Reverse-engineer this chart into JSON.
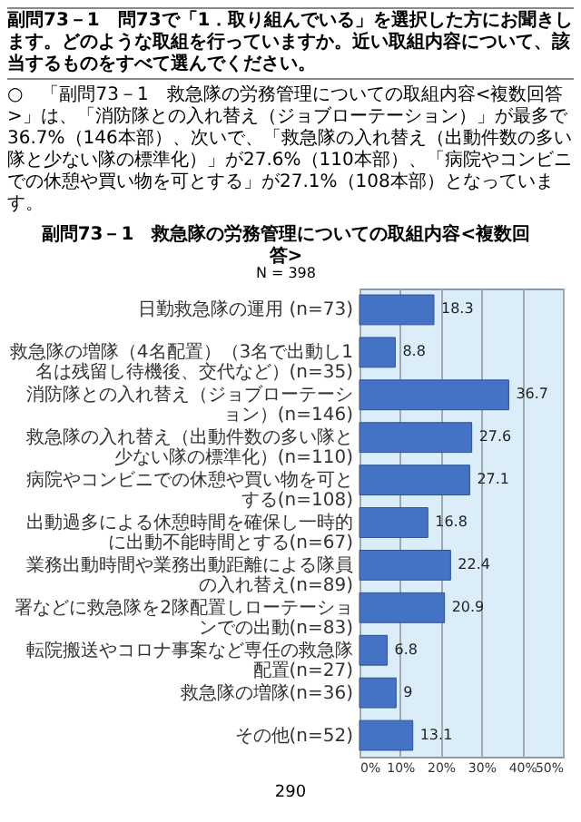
{
  "chart_data": {
    "type": "bar",
    "orientation": "horizontal",
    "title": "副問73－1　救急隊の労務管理についての取組内容<複数回答>",
    "subtitle": "N = 398",
    "annotations": [
      "副問73－1　問73で「1．取り組んでいる」を選択した方にお聞きします。どのような取組を行っていますか。近い取組内容について、該当するものをすべて選んでください。",
      "○　「副問73－1　救急隊の労務管理についての取組内容<複数回答>」は、「消防隊との入れ替え（ジョブローテーション）」が最多で36.7%（146本部）、次いで、「救急隊の入れ替え（出動件数の多い隊と少ない隊の標準化）」が27.6%（110本部）、「病院やコンビニでの休憩や買い物を可とする」が27.1%（108本部）となっています。",
      "290"
    ],
    "categories": [
      "日勤救急隊の運用 (n=73)",
      "救急隊の増隊（4名配置）（3名で出動し1名は残留し待機後、交代など）(n=35)",
      "消防隊との入れ替え（ジョブローテーション）(n=146)",
      "救急隊の入れ替え（出動件数の多い隊と少ない隊の標準化）(n=110)",
      "病院やコンビニでの休憩や買い物を可とする(n=108)",
      "出動過多による休憩時間を確保し一時的に出動不能時間とする(n=67)",
      "業務出動時間や業務出動距離による隊員の入れ替え(n=89)",
      "署などに救急隊を2隊配置しローテーションでの出動(n=83)",
      "転院搬送やコロナ事案など専任の救急隊配置(n=27)",
      "救急隊の増隊(n=36)",
      "その他(n=52)"
    ],
    "values": [
      18.3,
      8.8,
      36.7,
      27.6,
      27.1,
      16.8,
      22.4,
      20.9,
      6.8,
      9.0,
      13.1
    ],
    "color": "#4472c4",
    "data_labels": true,
    "xlim": [
      0,
      50
    ],
    "xticks": [
      {
        "value": 0,
        "label": "0%"
      },
      {
        "value": 10,
        "label": "10%"
      },
      {
        "value": 20,
        "label": "20%"
      },
      {
        "value": 30,
        "label": "30%"
      },
      {
        "value": 40,
        "label": "40%"
      },
      {
        "value": 50,
        "label": "50%"
      }
    ],
    "grid": "x"
  }
}
